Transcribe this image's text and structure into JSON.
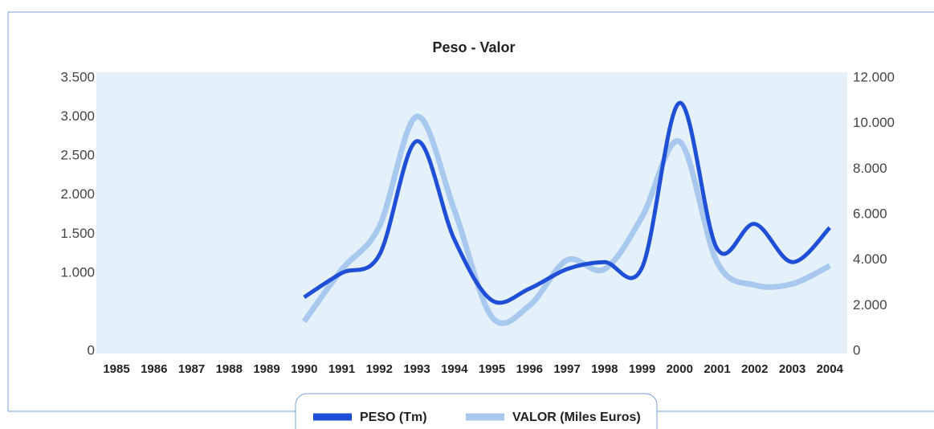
{
  "chart_data": {
    "type": "line",
    "title": "Peso - Valor",
    "categories": [
      "1985",
      "1986",
      "1987",
      "1988",
      "1989",
      "1990",
      "1991",
      "1992",
      "1993",
      "1994",
      "1995",
      "1996",
      "1997",
      "1998",
      "1999",
      "2000",
      "2001",
      "2002",
      "2003",
      "2004"
    ],
    "series": [
      {
        "name": "PESO (Tm)",
        "color": "#1f4fd6",
        "values": [
          null,
          null,
          null,
          null,
          null,
          690,
          1000,
          1230,
          2690,
          1430,
          650,
          800,
          1050,
          1140,
          1070,
          3180,
          1310,
          1630,
          1140,
          1580
        ]
      },
      {
        "name": "VALOR (Miles Euros)",
        "color": "#a9c8ee",
        "axis": "y2",
        "values": [
          null,
          null,
          null,
          null,
          null,
          1300,
          3580,
          5470,
          10300,
          6200,
          1500,
          2000,
          4000,
          3600,
          5900,
          9200,
          3900,
          2900,
          2950,
          3750
        ]
      }
    ],
    "ylim": [
      0,
      3500
    ],
    "yticks": [
      0,
      {
        "value": 1000,
        "label": "1.000"
      },
      {
        "value": 1500,
        "label": "1.500"
      },
      {
        "value": 2000,
        "label": "2.000"
      },
      {
        "value": 2500,
        "label": "2.500"
      },
      {
        "value": 3000,
        "label": "3.000"
      },
      {
        "value": 3500,
        "label": "3.500"
      }
    ],
    "y2lim": [
      0,
      12000
    ],
    "y2ticks": [
      0,
      {
        "value": 2000,
        "label": "2.000"
      },
      {
        "value": 4000,
        "label": "4.000"
      },
      {
        "value": 6000,
        "label": "6.000"
      },
      {
        "value": 8000,
        "label": "8.000"
      },
      {
        "value": 10000,
        "label": "10.000"
      },
      {
        "value": 12000,
        "label": "12.000"
      }
    ],
    "legend": "bottom"
  }
}
